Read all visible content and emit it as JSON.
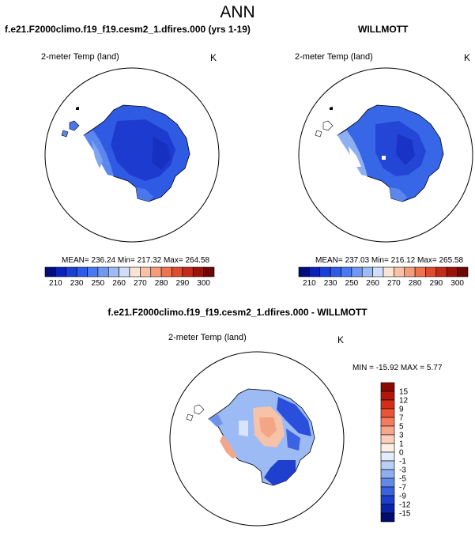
{
  "page": {
    "title": "ANN"
  },
  "panels": [
    {
      "title": "f.e21.F2000climo.f19_f19.cesm2_1.dfires.000 (yrs 1-19)",
      "variable": "2-meter Temp (land)",
      "units": "K",
      "stats": {
        "mean": "236.24",
        "min": "217.32",
        "max": "264.58"
      },
      "stats_text": "MEAN= 236.24  Min= 217.32  Max= 264.58"
    },
    {
      "title": "WILLMOTT",
      "variable": "2-meter Temp (land)",
      "units": "K",
      "stats": {
        "mean": "237.03",
        "min": "216.12",
        "max": "265.58"
      },
      "stats_text": "MEAN= 237.03  Min= 216.12  Max= 265.58"
    },
    {
      "title": "f.e21.F2000climo.f19_f19.cesm2_1.dfires.000 - WILLMOTT",
      "variable": "2-meter Temp (land)",
      "units": "K",
      "stats": {
        "min": "-15.92",
        "max": "5.77"
      },
      "stats_text": "MIN = -15.92  MAX =   5.77"
    }
  ],
  "colorbar_abs": {
    "labels": [
      "210",
      "230",
      "250",
      "260",
      "270",
      "280",
      "290",
      "300"
    ],
    "colors": [
      "#000d7a",
      "#0a22b8",
      "#1a3fd9",
      "#2d5ae8",
      "#4a78ee",
      "#6e98f2",
      "#9dbbf6",
      "#cfdffb",
      "#fbe3d6",
      "#f9c2a6",
      "#f59d7a",
      "#ee7350",
      "#e04b2e",
      "#c42a18",
      "#9c1208",
      "#6e0600"
    ]
  },
  "colorbar_diff": {
    "labels": [
      "15",
      "12",
      "9",
      "7",
      "5",
      "3",
      "1",
      "0",
      "-1",
      "-3",
      "-5",
      "-7",
      "-9",
      "-12",
      "-15"
    ],
    "colors": [
      "#8a0b05",
      "#b2160b",
      "#d42d18",
      "#ea5335",
      "#f47c5d",
      "#f9a78c",
      "#fccfbd",
      "#fdeee6",
      "#e2ecfb",
      "#b9cef5",
      "#8eaeef",
      "#6288e8",
      "#3a62dd",
      "#1c3fcc",
      "#0a24a8",
      "#000c6e"
    ]
  },
  "map_colors": {
    "coast": "#000000",
    "ice_deep": "#1e3cd0",
    "ice_mid": "#2e5ae4",
    "ice_light": "#4d7cec",
    "ice_edge": "#7ba2f1",
    "warm_light": "#f8c6ae",
    "warm_mid": "#f3a080",
    "cool_pale": "#c9d9f7"
  }
}
